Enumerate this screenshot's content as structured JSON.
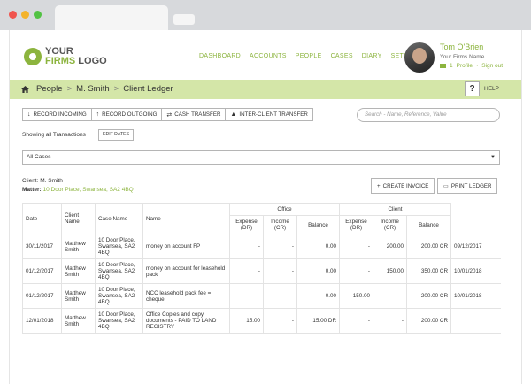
{
  "header": {
    "logo": {
      "line1": "YOUR",
      "line2_accent": "FIRMS",
      "line2_rest": " LOGO"
    },
    "nav": [
      "DASHBOARD",
      "ACCOUNTS",
      "PEOPLE",
      "CASES",
      "DIARY",
      "SETUP"
    ],
    "user": {
      "name": "Tom O'Brien",
      "firm": "Your Firms Name",
      "mail_count": "1",
      "profile": "Profile",
      "signout": "Sign out"
    }
  },
  "breadcrumb": {
    "items": [
      "People",
      "M. Smith",
      "Client Ledger"
    ],
    "separator": ">",
    "help_symbol": "?",
    "help_label": "HELP"
  },
  "toolbar": {
    "buttons": [
      {
        "icon": "↓",
        "label": "RECORD INCOMING"
      },
      {
        "icon": "↑",
        "label": "RECORD OUTGOING"
      },
      {
        "icon": "⇄",
        "label": "CASH TRANSFER"
      },
      {
        "icon": "▲",
        "label": "INTER-CLIENT TRANSFER"
      }
    ],
    "search_placeholder": "Search - Name, Reference, Value"
  },
  "filter": {
    "showing": "Showing all Transactions",
    "edit_dates": "EDIT DATES",
    "case_select": "All Cases",
    "caret": "▼"
  },
  "client": {
    "client_label": "Client:",
    "client_name": "M. Smith",
    "matter_label": "Matter:",
    "matter": "10 Door Place, Swansea, SA2 4BQ",
    "create_invoice": "CREATE INVOICE",
    "print_ledger": "PRINT LEDGER"
  },
  "table": {
    "group_office": "Office",
    "group_client": "Client",
    "columns": [
      "Date",
      "Client Name",
      "Case Name",
      "Name",
      "Expense (DR)",
      "Income (CR)",
      "Balance",
      "Expense (DR)",
      "Income (CR)",
      "Balance"
    ],
    "rows": [
      [
        "30/11/2017",
        "Matthew Smith",
        "10 Door Place, Swansea, SA2 4BQ",
        "money on account FP",
        "-",
        "-",
        "0.00",
        "-",
        "200.00",
        "200.00 CR",
        "09/12/2017"
      ],
      [
        "01/12/2017",
        "Matthew Smith",
        "10 Door Place, Swansea, SA2 4BQ",
        "money on account for leasehold pack",
        "-",
        "-",
        "0.00",
        "-",
        "150.00",
        "350.00 CR",
        "10/01/2018"
      ],
      [
        "01/12/2017",
        "Matthew Smith",
        "10 Door Place, Swansea, SA2 4BQ",
        "NCC leasehold pack fee = cheque",
        "-",
        "-",
        "0.00",
        "150.00",
        "-",
        "200.00 CR",
        "10/01/2018"
      ],
      [
        "12/01/2018",
        "Matthew Smith",
        "10 Door Place, Swansea, SA2 4BQ",
        "Office Copies and copy documents - PAID TO LAND REGISTRY",
        "15.00",
        "-",
        "15.00 DR",
        "-",
        "-",
        "200.00 CR",
        ""
      ]
    ]
  },
  "colors": {
    "accent": "#8cb43e",
    "crumb_bar": "#d4e6a8"
  }
}
